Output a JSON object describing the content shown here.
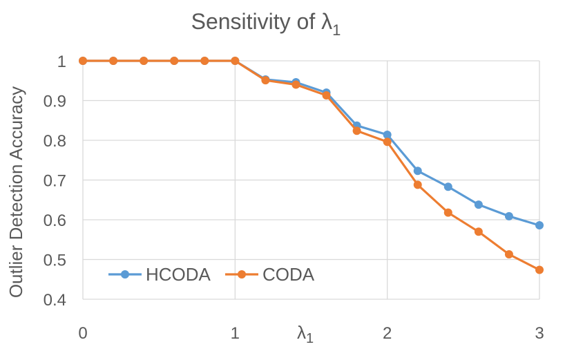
{
  "chart_data": {
    "type": "line",
    "title": "Sensitivity of λ",
    "title_sub": "1",
    "xlabel": "λ",
    "xlabel_sub": "1",
    "ylabel": "Outlier Detection Accuracy",
    "xlim": [
      0,
      3
    ],
    "ylim": [
      0.4,
      1
    ],
    "xticks": [
      0,
      1,
      2,
      3
    ],
    "xtick_labels": [
      "0",
      "1",
      "2",
      "3"
    ],
    "yticks": [
      0.4,
      0.5,
      0.6,
      0.7,
      0.8,
      0.9,
      1
    ],
    "ytick_labels": [
      "0.4",
      "0.5",
      "0.6",
      "0.7",
      "0.8",
      "0.9",
      "1"
    ],
    "grid": true,
    "legend_position": "bottom-left",
    "x": [
      0,
      0.2,
      0.4,
      0.6,
      0.8,
      1.0,
      1.2,
      1.4,
      1.6,
      1.8,
      2.0,
      2.2,
      2.4,
      2.6,
      2.8,
      3.0
    ],
    "series": [
      {
        "name": "HCODA",
        "color": "#5B9BD5",
        "values": [
          1,
          1,
          1,
          1,
          1,
          1,
          0.953,
          0.946,
          0.92,
          0.837,
          0.814,
          0.723,
          0.683,
          0.638,
          0.609,
          0.586
        ]
      },
      {
        "name": "CODA",
        "color": "#ED7D31",
        "values": [
          1,
          1,
          1,
          1,
          1,
          1,
          0.951,
          0.94,
          0.913,
          0.824,
          0.796,
          0.688,
          0.618,
          0.57,
          0.513,
          0.474
        ]
      }
    ]
  }
}
